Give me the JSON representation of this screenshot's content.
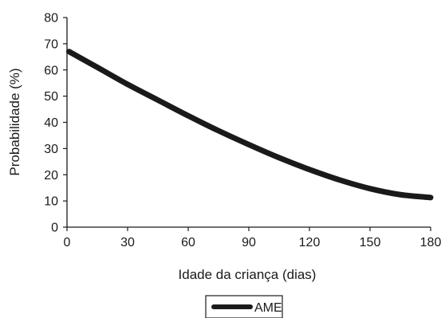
{
  "chart_data": {
    "type": "line",
    "title": "",
    "xlabel": "Idade da criança (dias)",
    "ylabel": "Probabilidade (%)",
    "xlim": [
      0,
      180
    ],
    "ylim": [
      0,
      80
    ],
    "x_ticks": [
      "0",
      "30",
      "60",
      "90",
      "120",
      "150",
      "180"
    ],
    "y_ticks": [
      "0",
      "10",
      "20",
      "30",
      "40",
      "50",
      "60",
      "70",
      "80"
    ],
    "grid": false,
    "legend_position": "bottom-center",
    "series": [
      {
        "name": "AME",
        "color": "#1a1a1a",
        "x": [
          1,
          15,
          30,
          45,
          60,
          75,
          90,
          105,
          120,
          135,
          150,
          165,
          180
        ],
        "y": [
          67,
          61,
          54.5,
          48.5,
          42.5,
          36.8,
          31.5,
          26.5,
          22,
          18,
          14.7,
          12.4,
          11.3
        ]
      }
    ]
  }
}
